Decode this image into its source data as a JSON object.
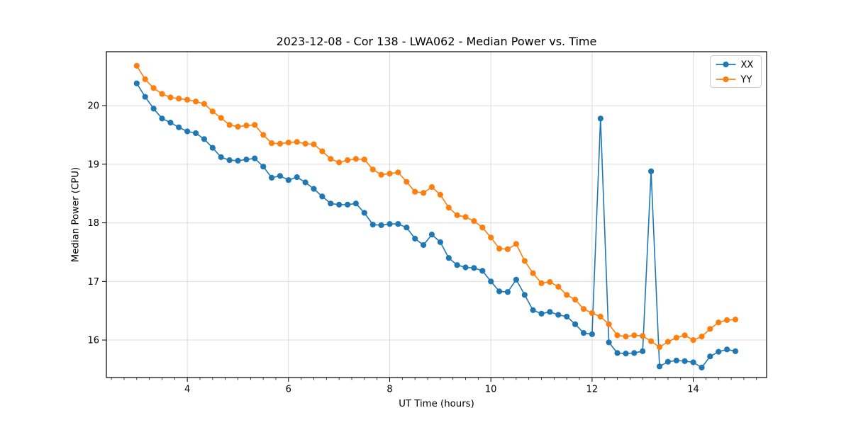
{
  "chart_data": {
    "type": "line",
    "title": "2023-12-08 - Cor 138 - LWA062 - Median Power vs. Time",
    "xlabel": "UT Time (hours)",
    "ylabel": "Median Power (CPU)",
    "xlim": [
      2.4,
      15.45
    ],
    "ylim": [
      15.36,
      20.92
    ],
    "x_ticks": [
      4,
      6,
      8,
      10,
      12,
      14
    ],
    "y_ticks": [
      16,
      17,
      18,
      19,
      20
    ],
    "x_minor_tick_step": 0.25,
    "grid": true,
    "legend_position": "upper right",
    "x": [
      3.0,
      3.167,
      3.333,
      3.5,
      3.667,
      3.833,
      4.0,
      4.167,
      4.333,
      4.5,
      4.667,
      4.833,
      5.0,
      5.167,
      5.333,
      5.5,
      5.667,
      5.833,
      6.0,
      6.167,
      6.333,
      6.5,
      6.667,
      6.833,
      7.0,
      7.167,
      7.333,
      7.5,
      7.667,
      7.833,
      8.0,
      8.167,
      8.333,
      8.5,
      8.667,
      8.833,
      9.0,
      9.167,
      9.333,
      9.5,
      9.667,
      9.833,
      10.0,
      10.167,
      10.333,
      10.5,
      10.667,
      10.833,
      11.0,
      11.167,
      11.333,
      11.5,
      11.667,
      11.833,
      12.0,
      12.167,
      12.333,
      12.5,
      12.667,
      12.833,
      13.0,
      13.167,
      13.333,
      13.5,
      13.667,
      13.833,
      14.0,
      14.167,
      14.333,
      14.5,
      14.667,
      14.833
    ],
    "series": [
      {
        "name": "XX",
        "color": "#1f77b4",
        "marker": "circle",
        "values": [
          20.38,
          20.15,
          19.95,
          19.78,
          19.71,
          19.63,
          19.56,
          19.53,
          19.43,
          19.28,
          19.12,
          19.07,
          19.06,
          19.08,
          19.1,
          18.96,
          18.77,
          18.8,
          18.73,
          18.78,
          18.69,
          18.58,
          18.45,
          18.33,
          18.31,
          18.31,
          18.33,
          18.17,
          17.97,
          17.96,
          17.98,
          17.98,
          17.92,
          17.73,
          17.62,
          17.8,
          17.67,
          17.4,
          17.28,
          17.24,
          17.23,
          17.18,
          17.0,
          16.83,
          16.82,
          17.03,
          16.77,
          16.51,
          16.45,
          16.48,
          16.43,
          16.4,
          16.27,
          16.12,
          16.1,
          19.78,
          15.96,
          15.78,
          15.77,
          15.78,
          15.81,
          18.88,
          15.55,
          15.63,
          15.65,
          15.64,
          15.62,
          15.53,
          15.72,
          15.8,
          15.84,
          15.81
        ]
      },
      {
        "name": "YY",
        "color": "#ff7f0e",
        "marker": "circle",
        "values": [
          20.68,
          20.45,
          20.3,
          20.2,
          20.14,
          20.12,
          20.1,
          20.07,
          20.03,
          19.9,
          19.79,
          19.67,
          19.64,
          19.66,
          19.67,
          19.5,
          19.36,
          19.35,
          19.37,
          19.38,
          19.35,
          19.34,
          19.22,
          19.09,
          19.03,
          19.07,
          19.09,
          19.08,
          18.91,
          18.82,
          18.84,
          18.86,
          18.7,
          18.53,
          18.51,
          18.61,
          18.48,
          18.26,
          18.13,
          18.1,
          18.03,
          17.92,
          17.75,
          17.56,
          17.55,
          17.64,
          17.35,
          17.14,
          16.97,
          16.99,
          16.91,
          16.77,
          16.69,
          16.53,
          16.46,
          16.4,
          16.27,
          16.08,
          16.06,
          16.08,
          16.07,
          15.98,
          15.88,
          15.97,
          16.04,
          16.08,
          16.0,
          16.06,
          16.19,
          16.3,
          16.34,
          16.35
        ]
      }
    ]
  },
  "styles": {
    "background": "#ffffff",
    "grid_color": "#dcdcdc",
    "spine_color": "#000000",
    "tick_color": "#000000",
    "text_color": "#000000",
    "legend_border": "#cccccc",
    "legend_bg": "#ffffff"
  }
}
